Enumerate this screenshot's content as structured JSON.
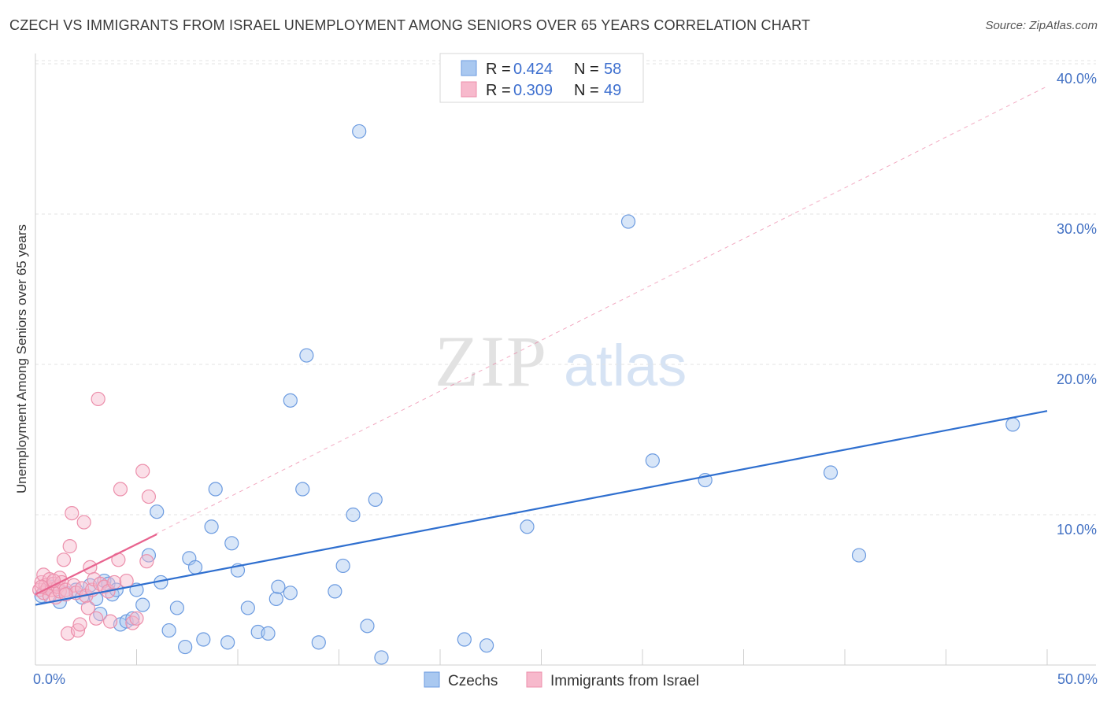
{
  "title": "CZECH VS IMMIGRANTS FROM ISRAEL UNEMPLOYMENT AMONG SENIORS OVER 65 YEARS CORRELATION CHART",
  "source": "Source: ZipAtlas.com",
  "watermark": {
    "zip": "ZIP",
    "atlas": "atlas"
  },
  "colors": {
    "czech_fill": "#a9c8f0",
    "czech_stroke": "#6c9be0",
    "czech_line": "#2f6fcf",
    "israel_fill": "#f7b9cc",
    "israel_stroke": "#ec8fab",
    "israel_line": "#e8648f",
    "tick_text": "#4472c4"
  },
  "legend": {
    "r_label": "R =",
    "n_label": "N =",
    "czech": {
      "r": "0.424",
      "n": "58"
    },
    "israel": {
      "r": "0.309",
      "n": "49"
    }
  },
  "chart_data": {
    "type": "scatter",
    "title": "CZECH VS IMMIGRANTS FROM ISRAEL UNEMPLOYMENT AMONG SENIORS OVER 65 YEARS CORRELATION CHART",
    "xlabel": "",
    "ylabel": "Unemployment Among Seniors over 65 years",
    "xlim": [
      0,
      50
    ],
    "ylim": [
      0,
      42
    ],
    "x_tick_labels": [
      {
        "value": 0,
        "label": "0.0%"
      },
      {
        "value": 50,
        "label": "50.0%"
      }
    ],
    "y_tick_labels": [
      {
        "value": 10,
        "label": "10.0%"
      },
      {
        "value": 20,
        "label": "20.0%"
      },
      {
        "value": 30,
        "label": "30.0%"
      },
      {
        "value": 40,
        "label": "40.0%"
      }
    ],
    "x_minor_ticks": [
      5,
      10,
      15,
      20,
      25,
      30,
      35,
      40,
      45,
      50
    ],
    "series": [
      {
        "name": "Czechs",
        "r": 0.424,
        "n": 58,
        "trend": {
          "x": [
            0,
            50
          ],
          "y": [
            4.0,
            16.9
          ]
        },
        "points": [
          [
            0.3,
            4.6
          ],
          [
            0.8,
            5.2
          ],
          [
            1.2,
            4.2
          ],
          [
            1.5,
            4.8
          ],
          [
            2.0,
            5.0
          ],
          [
            2.3,
            4.5
          ],
          [
            2.7,
            5.3
          ],
          [
            3.0,
            4.4
          ],
          [
            3.4,
            5.6
          ],
          [
            3.2,
            3.4
          ],
          [
            3.6,
            5.4
          ],
          [
            3.8,
            4.7
          ],
          [
            4.0,
            5.0
          ],
          [
            4.2,
            2.7
          ],
          [
            4.5,
            2.9
          ],
          [
            4.8,
            3.1
          ],
          [
            5.0,
            5.0
          ],
          [
            5.3,
            4.0
          ],
          [
            5.6,
            7.3
          ],
          [
            6.0,
            10.2
          ],
          [
            6.2,
            5.5
          ],
          [
            6.6,
            2.3
          ],
          [
            7.0,
            3.8
          ],
          [
            7.4,
            1.2
          ],
          [
            7.6,
            7.1
          ],
          [
            7.9,
            6.5
          ],
          [
            8.3,
            1.7
          ],
          [
            8.7,
            9.2
          ],
          [
            8.9,
            11.7
          ],
          [
            9.5,
            1.5
          ],
          [
            9.7,
            8.1
          ],
          [
            10.0,
            6.3
          ],
          [
            10.5,
            3.8
          ],
          [
            11.0,
            2.2
          ],
          [
            11.5,
            2.1
          ],
          [
            11.9,
            4.4
          ],
          [
            12.0,
            5.2
          ],
          [
            12.6,
            4.8
          ],
          [
            12.6,
            17.6
          ],
          [
            13.2,
            11.7
          ],
          [
            13.4,
            20.6
          ],
          [
            14.0,
            1.5
          ],
          [
            14.8,
            4.9
          ],
          [
            15.2,
            6.6
          ],
          [
            15.7,
            10.0
          ],
          [
            16.0,
            35.5
          ],
          [
            16.4,
            2.6
          ],
          [
            16.8,
            11.0
          ],
          [
            17.1,
            0.5
          ],
          [
            21.2,
            1.7
          ],
          [
            22.3,
            1.3
          ],
          [
            24.3,
            9.2
          ],
          [
            29.3,
            29.5
          ],
          [
            30.5,
            13.6
          ],
          [
            33.1,
            12.3
          ],
          [
            39.3,
            12.8
          ],
          [
            40.7,
            7.3
          ],
          [
            48.3,
            16.0
          ]
        ]
      },
      {
        "name": "Immigrants from Israel",
        "r": 0.309,
        "n": 49,
        "trend": {
          "x": [
            0,
            6.0
          ],
          "y": [
            4.7,
            8.7
          ]
        },
        "trend_extended": {
          "x": [
            0,
            50
          ],
          "y": [
            4.7,
            38.5
          ]
        },
        "points": [
          [
            0.2,
            5.0
          ],
          [
            0.3,
            5.5
          ],
          [
            0.4,
            4.8
          ],
          [
            0.4,
            6.0
          ],
          [
            0.5,
            5.3
          ],
          [
            0.6,
            5.1
          ],
          [
            0.7,
            4.6
          ],
          [
            0.7,
            5.7
          ],
          [
            0.8,
            5.0
          ],
          [
            0.9,
            5.4
          ],
          [
            1.0,
            4.5
          ],
          [
            1.1,
            5.2
          ],
          [
            1.2,
            4.9
          ],
          [
            1.2,
            5.8
          ],
          [
            1.3,
            5.5
          ],
          [
            1.4,
            7.0
          ],
          [
            1.5,
            5.0
          ],
          [
            1.6,
            2.1
          ],
          [
            1.7,
            7.9
          ],
          [
            1.8,
            10.1
          ],
          [
            1.9,
            5.3
          ],
          [
            2.0,
            4.8
          ],
          [
            2.1,
            2.3
          ],
          [
            2.2,
            2.7
          ],
          [
            2.3,
            5.1
          ],
          [
            2.4,
            9.5
          ],
          [
            2.5,
            4.6
          ],
          [
            2.6,
            3.8
          ],
          [
            2.7,
            6.5
          ],
          [
            2.8,
            5.0
          ],
          [
            2.9,
            5.7
          ],
          [
            3.0,
            3.1
          ],
          [
            3.1,
            17.7
          ],
          [
            3.2,
            5.4
          ],
          [
            3.4,
            5.2
          ],
          [
            3.6,
            4.9
          ],
          [
            3.7,
            2.9
          ],
          [
            3.9,
            5.5
          ],
          [
            4.1,
            7.0
          ],
          [
            4.2,
            11.7
          ],
          [
            4.5,
            5.6
          ],
          [
            4.8,
            2.8
          ],
          [
            5.0,
            3.1
          ],
          [
            5.3,
            12.9
          ],
          [
            5.5,
            6.9
          ],
          [
            5.6,
            11.2
          ],
          [
            0.3,
            5.2
          ],
          [
            0.9,
            5.6
          ],
          [
            1.5,
            4.7
          ]
        ]
      }
    ]
  },
  "bottom_legend": [
    {
      "label": "Czechs"
    },
    {
      "label": "Immigrants from Israel"
    }
  ]
}
